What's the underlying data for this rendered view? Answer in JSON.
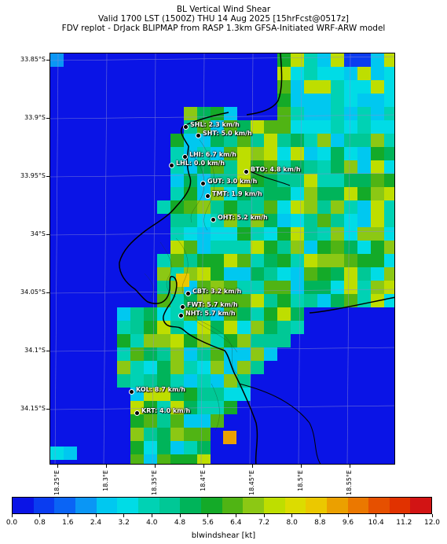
{
  "title": {
    "line1": "BL Vertical Wind Shear",
    "line2": "Valid 1700 LST (1500Z) THU 14 Aug 2025 [15hrFcst@0517z]",
    "line3": "FDV replot - DrJack BLIPMAP from RASP 1.3km GFSA-Initiated WRF-ARW model"
  },
  "map": {
    "lat_labels": [
      "33.85°S",
      "33.9°S",
      "33.95°S",
      "34°S",
      "34.05°S",
      "34.1°S",
      "34.15°S"
    ],
    "lon_labels": [
      "18.25°E",
      "18.3°E",
      "18.35°E",
      "18.4°E",
      "18.45°E",
      "18.5°E",
      "18.55°E"
    ],
    "stations": [
      {
        "label": "SHL: 2.3 km/h"
      },
      {
        "label": "SHT: 5.0 km/h"
      },
      {
        "label": "LHI: 6.7 km/h"
      },
      {
        "label": "LHL: 0.0 km/h"
      },
      {
        "label": "BTO: 4.8 km/h"
      },
      {
        "label": "GUT: 3.0 km/h"
      },
      {
        "label": "TMT: 1.9 km/h"
      },
      {
        "label": "OHT: 5.2 km/h"
      },
      {
        "label": "CBT: 3.2 km/h"
      },
      {
        "label": "FWT: 5.7 km/h"
      },
      {
        "label": "NHT: 5.7 km/h"
      },
      {
        "label": "KOL: 8.7 km/h"
      },
      {
        "label": "KRT: 4.0 km/h"
      }
    ]
  },
  "colorbar": {
    "title": "blwindshear [kt]",
    "ticks": [
      "0.0",
      "0.8",
      "1.6",
      "2.4",
      "3.2",
      "4.0",
      "4.8",
      "5.6",
      "6.4",
      "7.2",
      "8.0",
      "8.8",
      "9.6",
      "10.4",
      "11.2",
      "12.0"
    ],
    "colors": [
      "#0a14e6",
      "#0a3cf0",
      "#0a64f5",
      "#0a96f5",
      "#00c8f0",
      "#00dce6",
      "#00d2b4",
      "#00c896",
      "#00b45a",
      "#14aa28",
      "#50b414",
      "#8cc814",
      "#bede00",
      "#dcdc00",
      "#ebc800",
      "#eba000",
      "#eb7800",
      "#e65000",
      "#e13200",
      "#d21414"
    ]
  }
}
